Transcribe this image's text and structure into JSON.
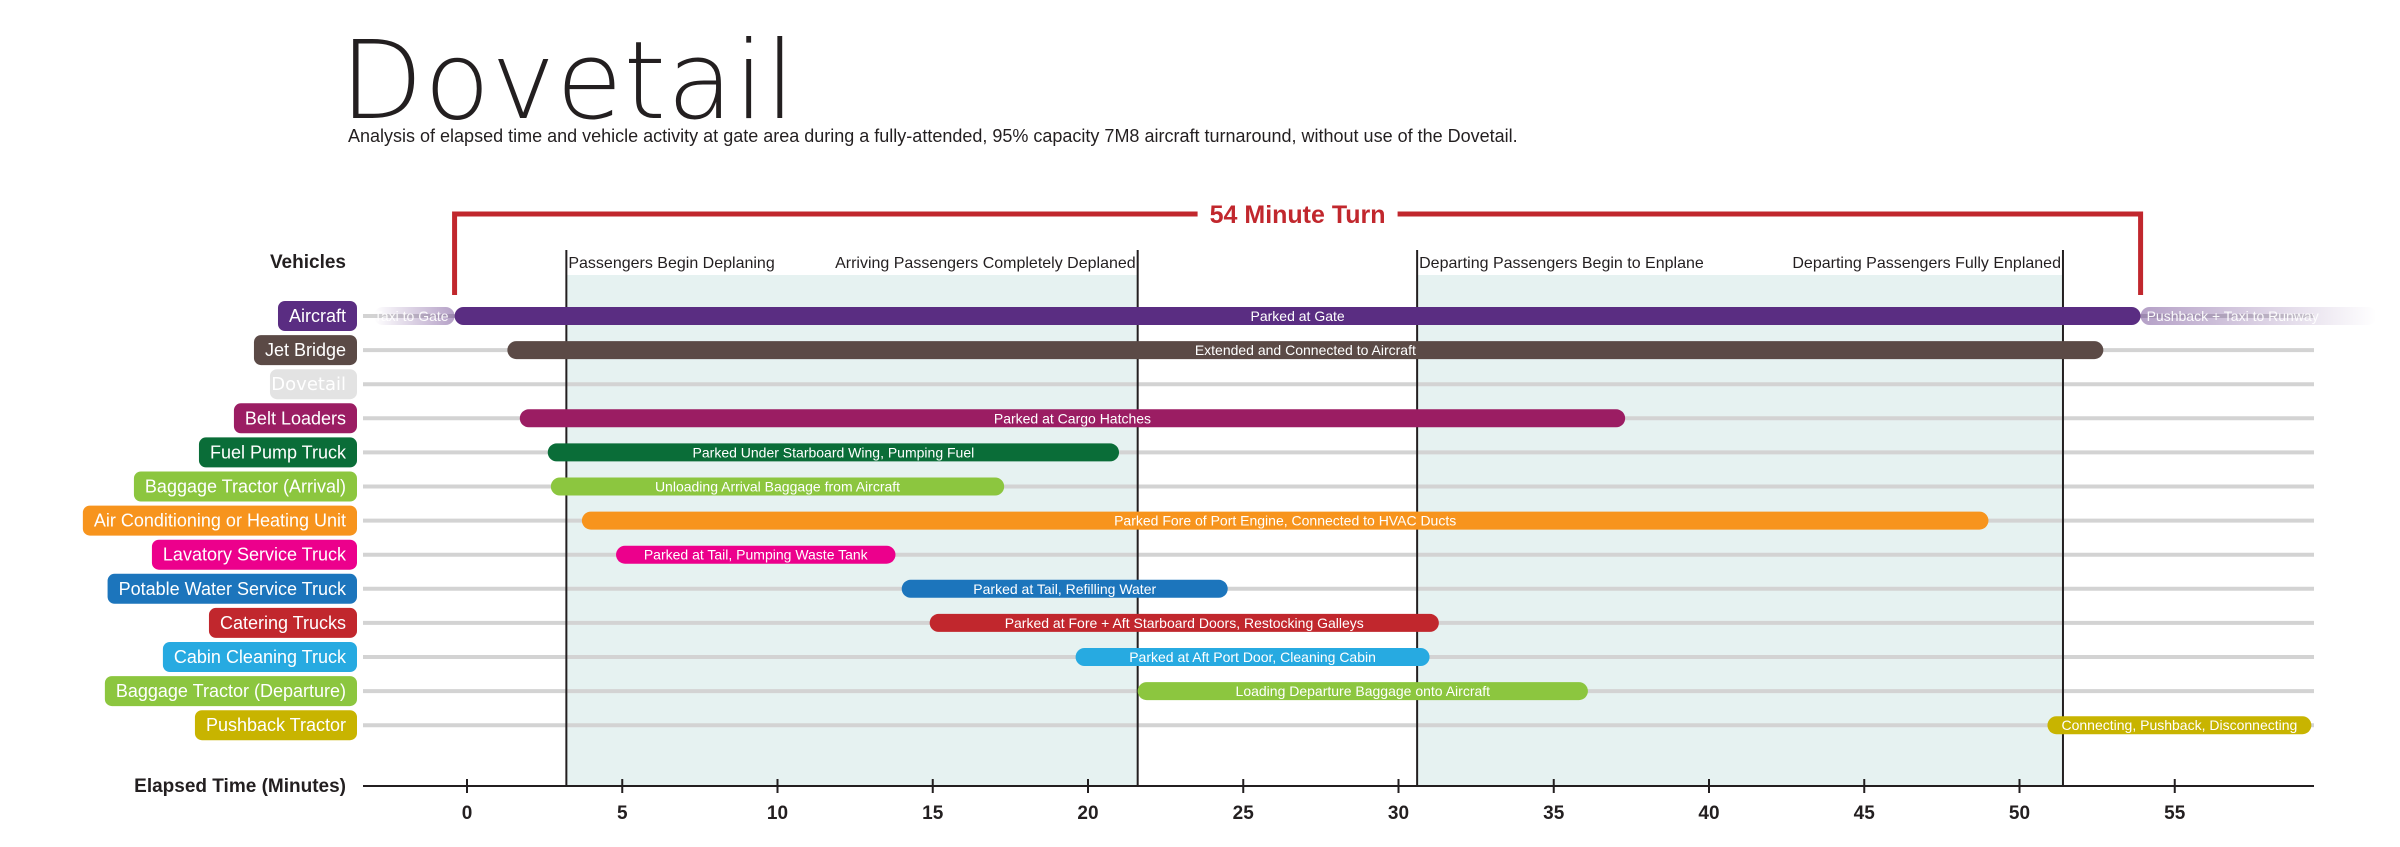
{
  "header": {
    "logo": "Dovetail",
    "subtitle": "Analysis of elapsed time and vehicle activity at gate area during a fully-attended, 95% capacity 7M8 aircraft turnaround, without use of the Dovetail."
  },
  "chart_data": {
    "type": "gantt",
    "title": "54 Minute Turn",
    "ylabel": "Vehicles",
    "xlabel": "Elapsed Time (Minutes)",
    "xlim": [
      -3,
      59
    ],
    "xticks": [
      0,
      5,
      10,
      15,
      20,
      25,
      30,
      35,
      40,
      45,
      50,
      55
    ],
    "turn_bracket": [
      -0.4,
      53.9
    ],
    "shaded_intervals": [
      [
        3.2,
        21.6
      ],
      [
        30.6,
        51.4
      ]
    ],
    "milestones": [
      {
        "label": "Passengers Begin Deplaning",
        "x": 3.2,
        "anchor": "start"
      },
      {
        "label": "Arriving Passengers Completely Deplaned",
        "x": 21.6,
        "anchor": "end"
      },
      {
        "label": "Departing Passengers Begin to Enplane",
        "x": 30.6,
        "anchor": "start"
      },
      {
        "label": "Departing Passengers Fully Enplaned",
        "x": 51.4,
        "anchor": "end"
      }
    ],
    "vehicles": [
      {
        "name": "Aircraft",
        "color": "#5a2d82",
        "bars": [
          {
            "start": -3,
            "end": -0.4,
            "label": "Taxi to Gate",
            "faded": true,
            "fade": "left"
          },
          {
            "start": -0.4,
            "end": 53.9,
            "label": "Parked at Gate"
          },
          {
            "start": 53.9,
            "end": 61.5,
            "label": "Pushback + Taxi to Runway",
            "faded": true,
            "fade": "right"
          }
        ]
      },
      {
        "name": "Jet Bridge",
        "color": "#5b4a46",
        "bars": [
          {
            "start": 1.3,
            "end": 52.7,
            "label": "Extended and Connected to Aircraft"
          }
        ]
      },
      {
        "name": "Dovetail",
        "color": "#e3e3e3",
        "logo": true,
        "bars": []
      },
      {
        "name": "Belt Loaders",
        "color": "#9b1d63",
        "bars": [
          {
            "start": 1.7,
            "end": 37.3,
            "label": "Parked at Cargo Hatches"
          }
        ]
      },
      {
        "name": "Fuel Pump Truck",
        "color": "#0a6d38",
        "bars": [
          {
            "start": 2.6,
            "end": 21.0,
            "label": "Parked Under Starboard Wing, Pumping Fuel"
          }
        ]
      },
      {
        "name": "Baggage Tractor (Arrival)",
        "color": "#8cc63f",
        "bars": [
          {
            "start": 2.7,
            "end": 17.3,
            "label": "Unloading Arrival Baggage from Aircraft"
          }
        ]
      },
      {
        "name": "Air Conditioning or Heating Unit",
        "color": "#f7941d",
        "bars": [
          {
            "start": 3.7,
            "end": 49.0,
            "label": "Parked Fore of Port Engine, Connected to HVAC Ducts"
          }
        ]
      },
      {
        "name": "Lavatory Service Truck",
        "color": "#ec008c",
        "bars": [
          {
            "start": 4.8,
            "end": 13.8,
            "label": "Parked at Tail, Pumping Waste Tank"
          }
        ]
      },
      {
        "name": "Potable Water Service Truck",
        "color": "#1c75bc",
        "bars": [
          {
            "start": 14.0,
            "end": 24.5,
            "label": "Parked at Tail, Refilling Water"
          }
        ]
      },
      {
        "name": "Catering Trucks",
        "color": "#c1272d",
        "bars": [
          {
            "start": 14.9,
            "end": 31.3,
            "label": "Parked at Fore + Aft Starboard Doors, Restocking Galleys"
          }
        ]
      },
      {
        "name": "Cabin Cleaning Truck",
        "color": "#27aae1",
        "bars": [
          {
            "start": 19.6,
            "end": 31.0,
            "label": "Parked at Aft Port Door, Cleaning Cabin"
          }
        ]
      },
      {
        "name": "Baggage Tractor (Departure)",
        "color": "#8cc63f",
        "bars": [
          {
            "start": 21.6,
            "end": 36.1,
            "label": "Loading Departure Baggage onto Aircraft"
          }
        ]
      },
      {
        "name": "Pushback Tractor",
        "color": "#c8b400",
        "bars": [
          {
            "start": 50.9,
            "end": 59.4,
            "label": "Connecting, Pushback, Disconnecting"
          }
        ]
      }
    ]
  }
}
